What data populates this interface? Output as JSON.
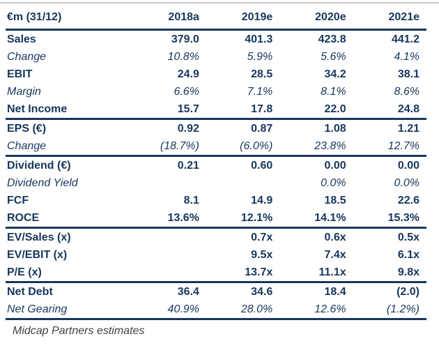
{
  "colors": {
    "navy_text_and_rules": "#17365D",
    "top_rule_gray": "#C9C9C9",
    "footer_text": "#404040"
  },
  "chart_data": {
    "type": "table",
    "title": "€m (31/12) — financial estimates table",
    "columns": [
      "€m (31/12)",
      "2018a",
      "2019e",
      "2020e",
      "2021e"
    ],
    "sections": [
      {
        "rows": [
          {
            "label": "Sales",
            "style": "bold",
            "values": [
              "379.0",
              "401.3",
              "423.8",
              "441.2"
            ]
          },
          {
            "label": "Change",
            "style": "italic",
            "values": [
              "10.8%",
              "5.9%",
              "5.6%",
              "4.1%"
            ]
          },
          {
            "label": "EBIT",
            "style": "bold",
            "values": [
              "24.9",
              "28.5",
              "34.2",
              "38.1"
            ]
          },
          {
            "label": "Margin",
            "style": "italic",
            "values": [
              "6.6%",
              "7.1%",
              "8.1%",
              "8.6%"
            ]
          },
          {
            "label": "Net Income",
            "style": "bold",
            "values": [
              "15.7",
              "17.8",
              "22.0",
              "24.8"
            ]
          }
        ]
      },
      {
        "rows": [
          {
            "label": "EPS (€)",
            "style": "bold",
            "values": [
              "0.92",
              "0.87",
              "1.08",
              "1.21"
            ]
          },
          {
            "label": "Change",
            "style": "italic",
            "values": [
              "(18.7%)",
              "(6.0%)",
              "23.8%",
              "12.7%"
            ]
          }
        ]
      },
      {
        "rows": [
          {
            "label": "Dividend (€)",
            "style": "bold",
            "values": [
              "0.21",
              "0.60",
              "0.00",
              "0.00"
            ]
          },
          {
            "label": "Dividend Yield",
            "style": "italic",
            "values": [
              "",
              "",
              "0.0%",
              "0.0%"
            ]
          },
          {
            "label": "FCF",
            "style": "bold",
            "values": [
              "8.1",
              "14.9",
              "18.5",
              "22.6"
            ]
          },
          {
            "label": "ROCE",
            "style": "bold",
            "values": [
              "13.6%",
              "12.1%",
              "14.1%",
              "15.3%"
            ]
          }
        ]
      },
      {
        "rows": [
          {
            "label": "EV/Sales (x)",
            "style": "bold",
            "values": [
              "",
              "0.7x",
              "0.6x",
              "0.5x"
            ]
          },
          {
            "label": "EV/EBIT (x)",
            "style": "bold",
            "values": [
              "",
              "9.5x",
              "7.4x",
              "6.1x"
            ]
          },
          {
            "label": "P/E (x)",
            "style": "bold",
            "values": [
              "",
              "13.7x",
              "11.1x",
              "9.8x"
            ]
          }
        ]
      },
      {
        "rows": [
          {
            "label": "Net Debt",
            "style": "bold",
            "values": [
              "36.4",
              "34.6",
              "18.4",
              "(2.0)"
            ]
          },
          {
            "label": "Net Gearing",
            "style": "italic",
            "values": [
              "40.9%",
              "28.0%",
              "12.6%",
              "(1.2%)"
            ]
          }
        ]
      }
    ],
    "footnote": "Midcap Partners estimates"
  }
}
